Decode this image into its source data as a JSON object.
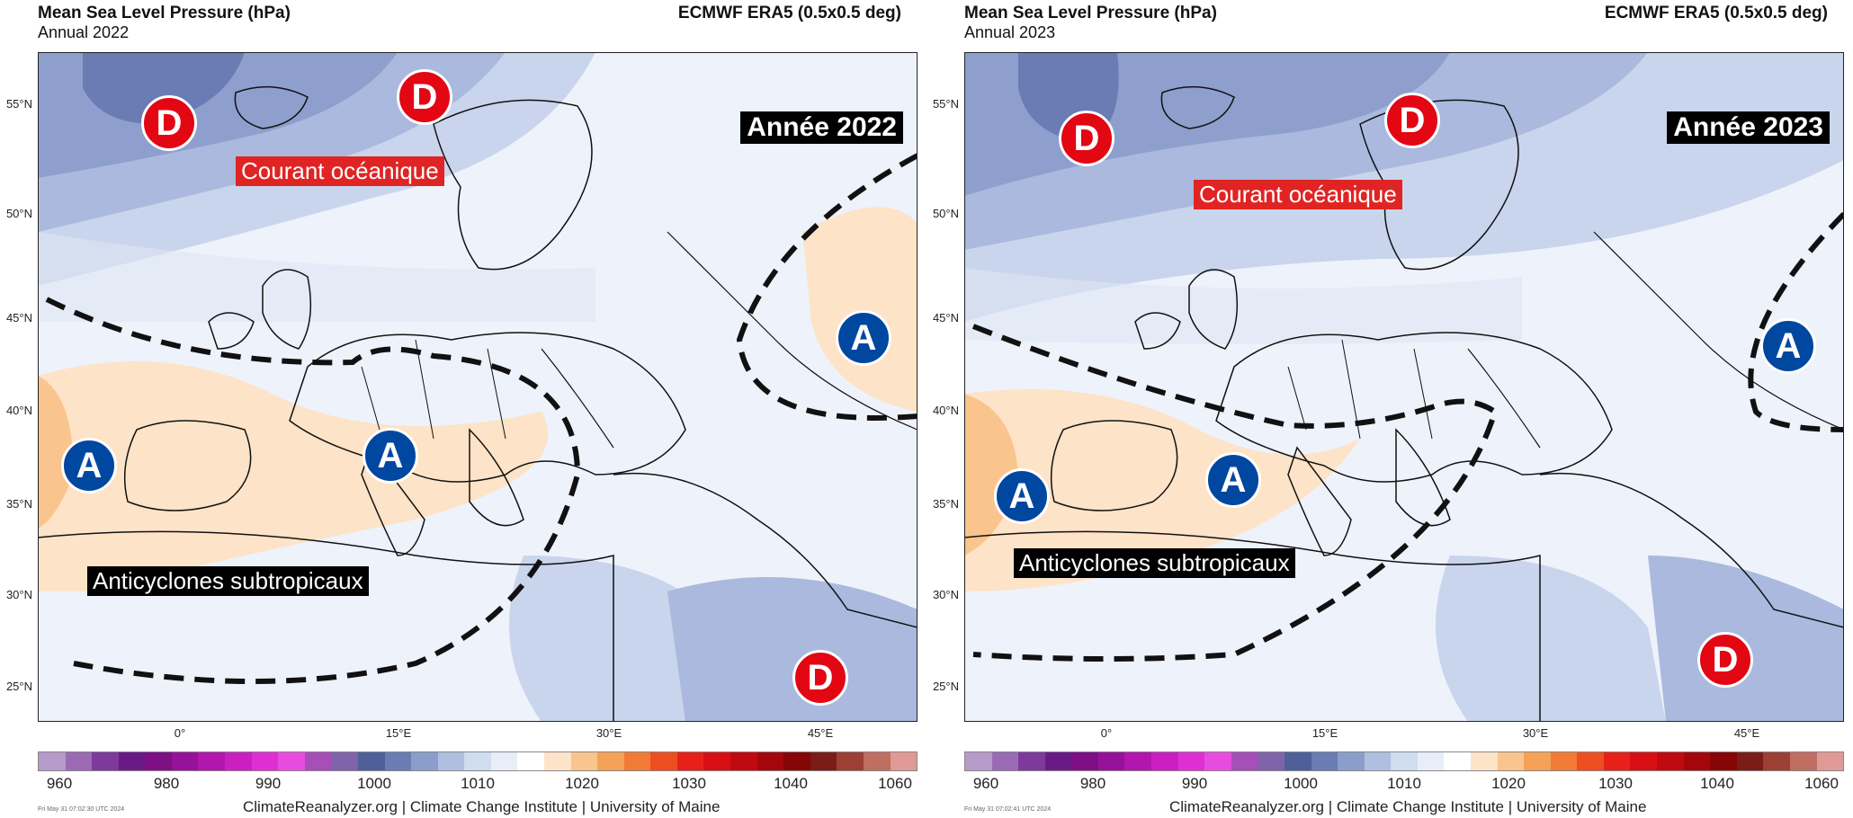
{
  "panels": [
    {
      "title": "Mean Sea Level Pressure (hPa)",
      "subtitle": "Annual 2022",
      "dataset": "ECMWF ERA5 (0.5x0.5 deg)",
      "year_label": "Année 2022",
      "current_label": "Courant océanique",
      "anticyclone_label": "Anticyclones subtropicaux",
      "timestamp": "Fri May 31 07:02:30 UTC 2024",
      "markers": [
        {
          "type": "D",
          "label": "D",
          "name": "low-pressure-iceland-marker"
        },
        {
          "type": "D",
          "label": "D",
          "name": "low-pressure-norway-marker"
        },
        {
          "type": "D",
          "label": "D",
          "name": "low-pressure-middle-east-marker"
        },
        {
          "type": "A",
          "label": "A",
          "name": "high-pressure-azores-marker"
        },
        {
          "type": "A",
          "label": "A",
          "name": "high-pressure-alps-marker"
        },
        {
          "type": "A",
          "label": "A",
          "name": "high-pressure-russia-marker"
        }
      ]
    },
    {
      "title": "Mean Sea Level Pressure (hPa)",
      "subtitle": "Annual 2023",
      "dataset": "ECMWF ERA5 (0.5x0.5 deg)",
      "year_label": "Année 2023",
      "current_label": "Courant océanique",
      "anticyclone_label": "Anticyclones subtropicaux",
      "timestamp": "Fri May 31 07:02:41 UTC 2024",
      "markers": [
        {
          "type": "D",
          "label": "D",
          "name": "low-pressure-iceland-marker"
        },
        {
          "type": "D",
          "label": "D",
          "name": "low-pressure-norway-marker"
        },
        {
          "type": "D",
          "label": "D",
          "name": "low-pressure-middle-east-marker"
        },
        {
          "type": "A",
          "label": "A",
          "name": "high-pressure-azores-marker"
        },
        {
          "type": "A",
          "label": "A",
          "name": "high-pressure-mediterranean-marker"
        },
        {
          "type": "A",
          "label": "A",
          "name": "high-pressure-russia-marker"
        }
      ]
    }
  ],
  "lat_labels": [
    "55°N",
    "50°N",
    "45°N",
    "40°N",
    "35°N",
    "30°N",
    "25°N"
  ],
  "lon_labels": [
    "0°",
    "15°E",
    "30°E",
    "45°E"
  ],
  "colorbar_labels": [
    "960",
    "980",
    "990",
    "1000",
    "1010",
    "1020",
    "1030",
    "1040",
    "1060"
  ],
  "colorbar_colors": [
    "#b69ac9",
    "#9a6bb4",
    "#7d3a9c",
    "#6a1a86",
    "#7e0f85",
    "#97129a",
    "#b316ae",
    "#cc1fc2",
    "#df2fd2",
    "#e84be0",
    "#a64fb8",
    "#8063a8",
    "#4e5f9a",
    "#6a7cb3",
    "#8b9dcb",
    "#aebfe0",
    "#d0dcef",
    "#e8eef8",
    "#ffffff",
    "#fde3c7",
    "#f9c48e",
    "#f5a158",
    "#f07a36",
    "#ee4e1f",
    "#e8201a",
    "#d90e14",
    "#c00a0f",
    "#a3070b",
    "#860507",
    "#7a1c17",
    "#9c4035",
    "#c06d62",
    "#df9a95"
  ],
  "credit": "ClimateReanalyzer.org | Climate Change Institute | University of Maine",
  "colors": {
    "low_marker": "#e30613",
    "high_marker": "#0047a0",
    "current_label_bg": "#e02424",
    "land_outline": "#111111"
  }
}
